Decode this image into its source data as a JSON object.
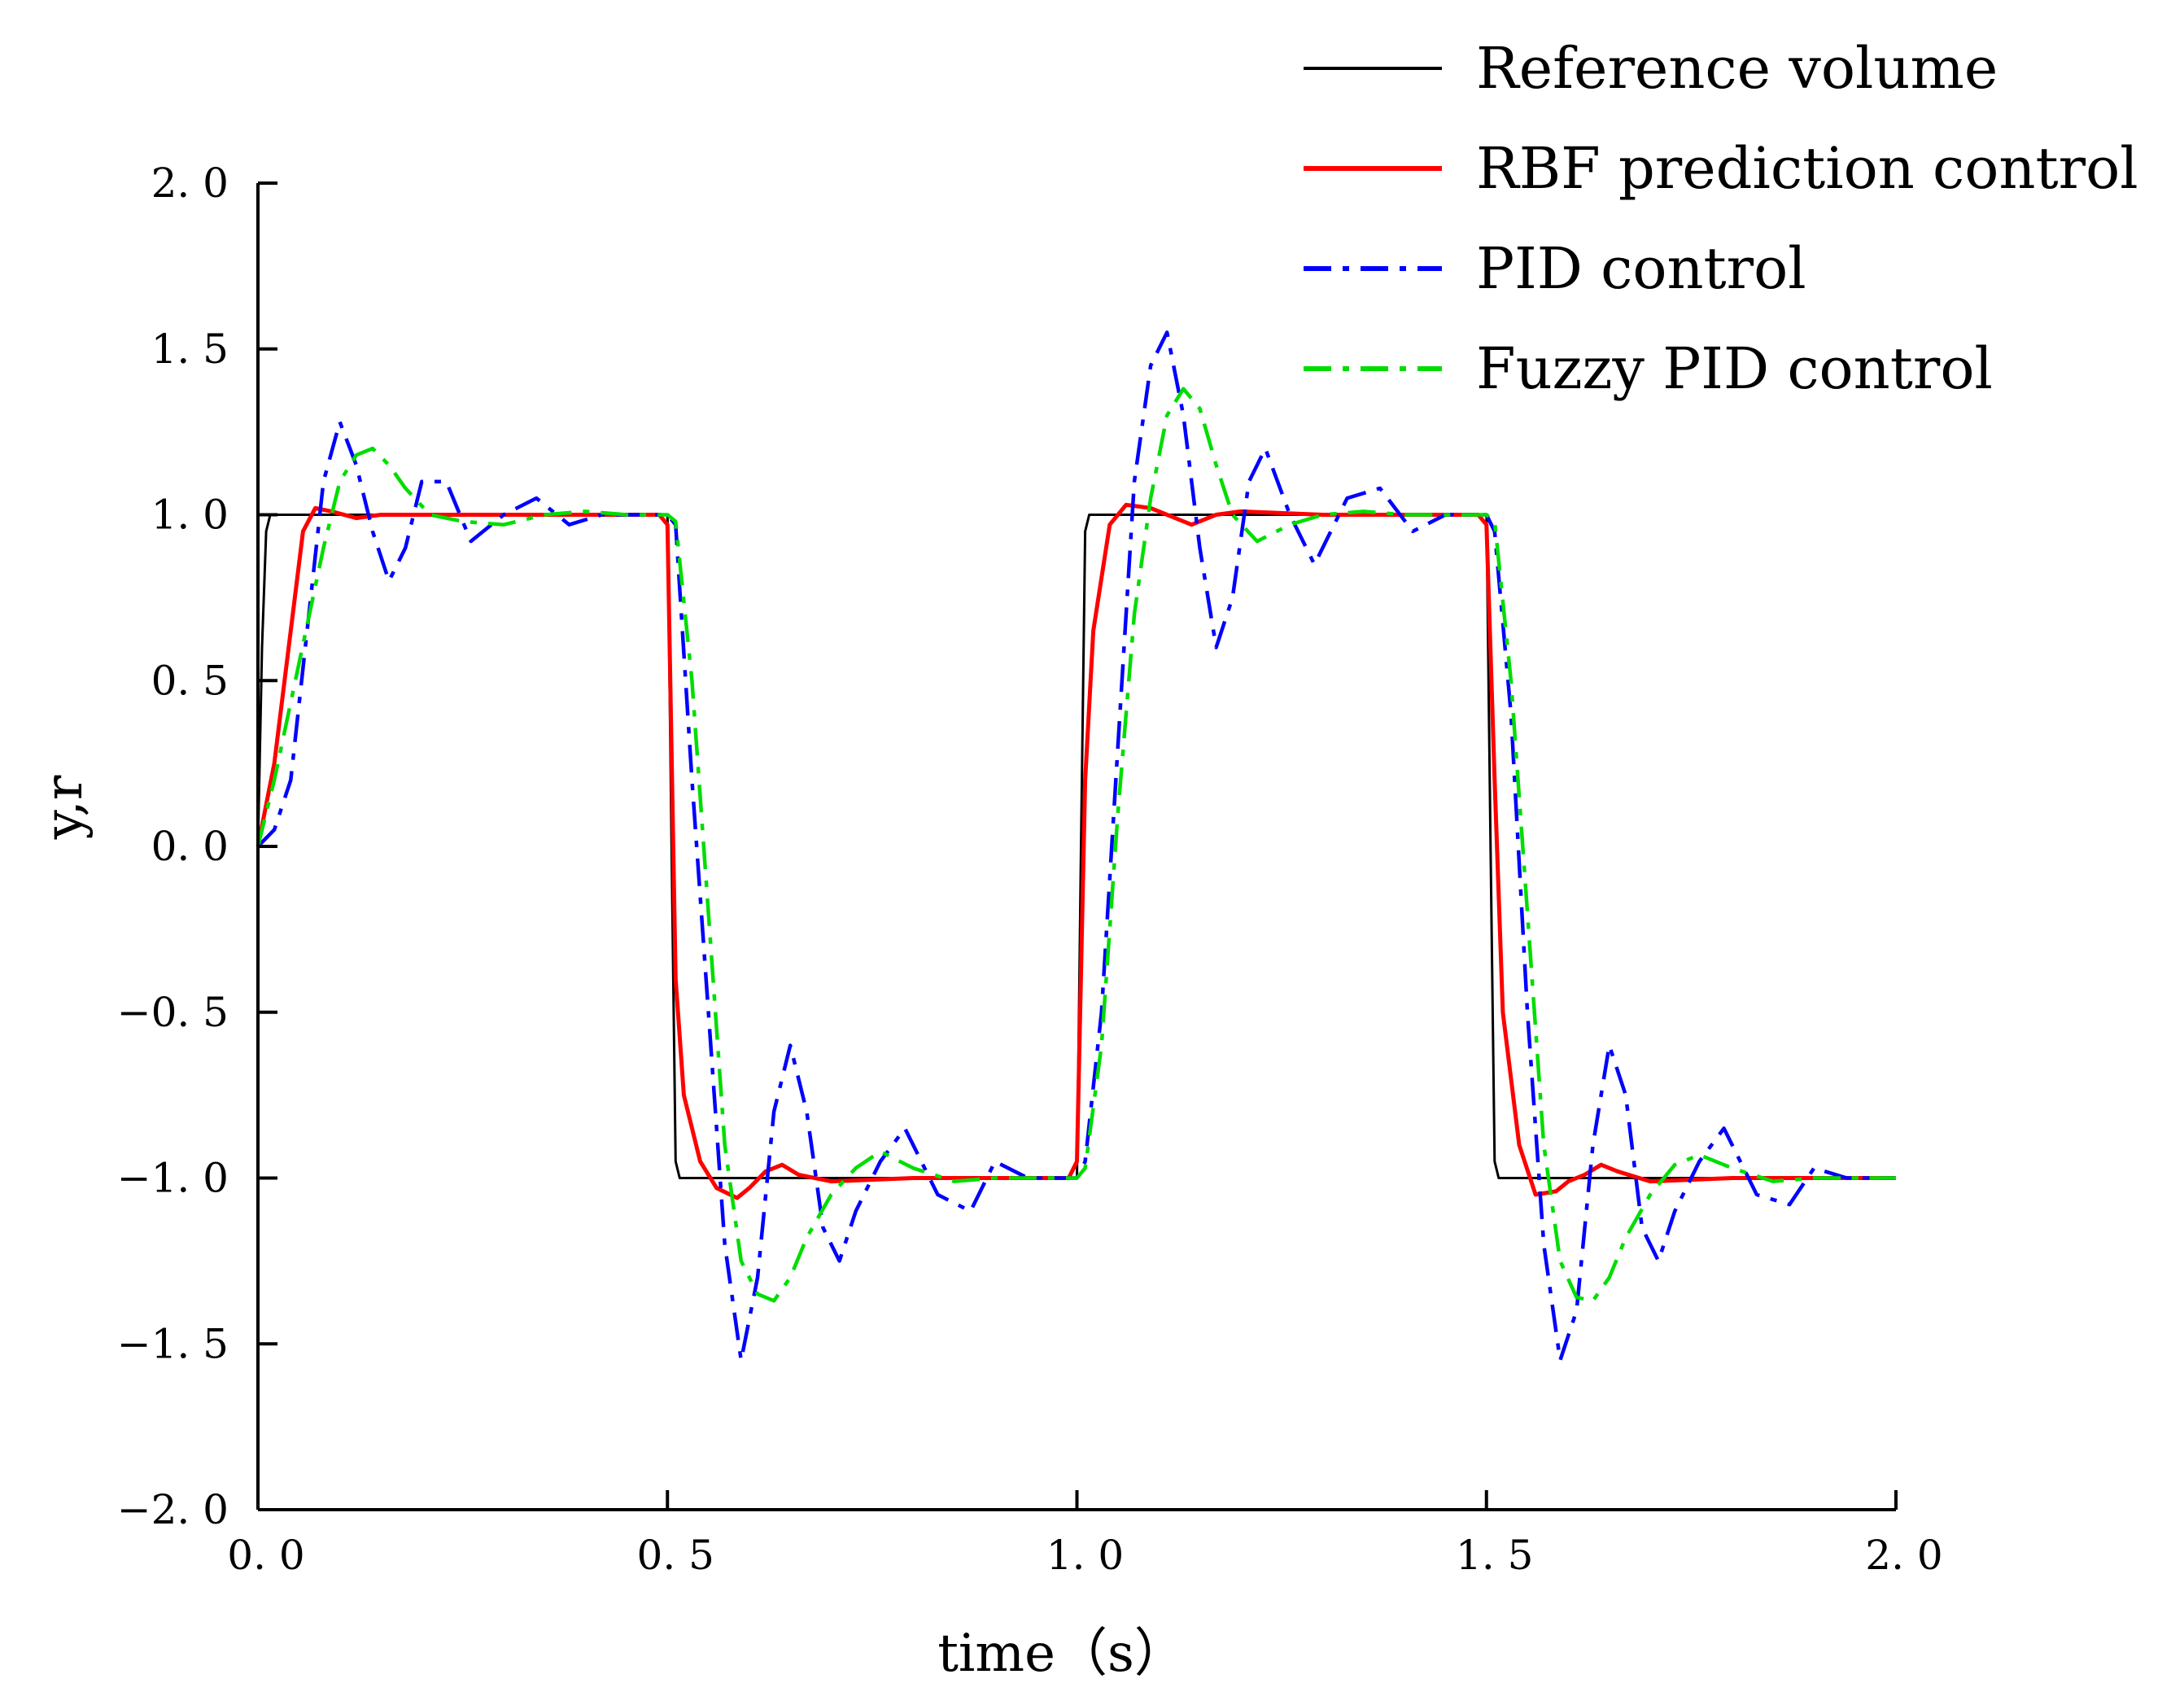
{
  "chart_data": {
    "type": "line",
    "title": "",
    "xlabel": "time（s）",
    "ylabel": "y,r",
    "xlim": [
      0.0,
      2.0
    ],
    "ylim": [
      -2.0,
      2.0
    ],
    "grid": false,
    "legend_position": "top-right",
    "x_ticks": [
      0.0,
      0.5,
      1.0,
      1.5,
      2.0
    ],
    "x_tick_labels": [
      "0. 0",
      "0. 5",
      "1. 0",
      "1. 5",
      "2. 0"
    ],
    "y_ticks": [
      2.0,
      1.5,
      1.0,
      0.5,
      0.0,
      -0.5,
      -1.0,
      -1.5,
      -2.0
    ],
    "y_tick_labels": [
      "2. 0",
      "1. 5",
      "1. 0",
      "0. 5",
      "0. 0",
      "−0. 5",
      "−1. 0",
      "−1. 5",
      "−2. 0"
    ],
    "series": [
      {
        "name": "Reference volume",
        "color": "#000000",
        "dash": "solid",
        "x": [
          0,
          0.005,
          0.01,
          0.015,
          0.5,
          0.505,
          0.51,
          0.515,
          1.0,
          1.005,
          1.01,
          1.015,
          1.5,
          1.505,
          1.51,
          1.515,
          2.0
        ],
        "y": [
          0,
          0.6,
          0.95,
          1.0,
          1.0,
          0.0,
          -0.95,
          -1.0,
          -1.0,
          0.0,
          0.95,
          1.0,
          1.0,
          0.0,
          -0.95,
          -1.0,
          -1.0
        ]
      },
      {
        "name": "RBF prediction control",
        "color": "#ff0000",
        "dash": "solid",
        "x": [
          0,
          0.02,
          0.04,
          0.055,
          0.07,
          0.09,
          0.12,
          0.15,
          0.2,
          0.3,
          0.4,
          0.49,
          0.5,
          0.51,
          0.52,
          0.54,
          0.56,
          0.585,
          0.6,
          0.62,
          0.64,
          0.66,
          0.7,
          0.8,
          0.9,
          0.99,
          1.0,
          1.01,
          1.02,
          1.04,
          1.06,
          1.09,
          1.12,
          1.14,
          1.17,
          1.2,
          1.3,
          1.4,
          1.49,
          1.5,
          1.51,
          1.52,
          1.54,
          1.56,
          1.585,
          1.6,
          1.62,
          1.64,
          1.66,
          1.7,
          1.8,
          1.9,
          2.0
        ],
        "y": [
          0,
          0.25,
          0.65,
          0.95,
          1.02,
          1.01,
          0.99,
          1.0,
          1.0,
          1.0,
          1.0,
          1.0,
          0.97,
          -0.4,
          -0.75,
          -0.95,
          -1.03,
          -1.06,
          -1.03,
          -0.98,
          -0.96,
          -0.99,
          -1.01,
          -1.0,
          -1.0,
          -1.0,
          -0.95,
          0.2,
          0.65,
          0.97,
          1.03,
          1.02,
          0.99,
          0.97,
          1.0,
          1.01,
          1.0,
          1.0,
          1.0,
          0.97,
          0.2,
          -0.5,
          -0.9,
          -1.05,
          -1.04,
          -1.01,
          -0.99,
          -0.96,
          -0.98,
          -1.01,
          -1.0,
          -1.0,
          -1.0
        ]
      },
      {
        "name": "PID control",
        "color": "#0000ff",
        "dash": "dashdot",
        "x": [
          0,
          0.02,
          0.04,
          0.06,
          0.08,
          0.1,
          0.12,
          0.14,
          0.16,
          0.18,
          0.2,
          0.23,
          0.26,
          0.3,
          0.34,
          0.38,
          0.42,
          0.46,
          0.5,
          0.51,
          0.53,
          0.55,
          0.57,
          0.59,
          0.61,
          0.63,
          0.65,
          0.67,
          0.69,
          0.71,
          0.73,
          0.76,
          0.79,
          0.83,
          0.87,
          0.9,
          0.94,
          0.98,
          1.0,
          1.01,
          1.03,
          1.05,
          1.07,
          1.09,
          1.11,
          1.13,
          1.15,
          1.17,
          1.19,
          1.21,
          1.23,
          1.26,
          1.29,
          1.33,
          1.37,
          1.41,
          1.45,
          1.5,
          1.51,
          1.53,
          1.55,
          1.57,
          1.59,
          1.61,
          1.63,
          1.65,
          1.67,
          1.69,
          1.71,
          1.73,
          1.76,
          1.79,
          1.83,
          1.87,
          1.9,
          1.94,
          2.0
        ],
        "y": [
          0,
          0.05,
          0.2,
          0.65,
          1.1,
          1.28,
          1.15,
          0.95,
          0.8,
          0.9,
          1.1,
          1.1,
          0.92,
          1.0,
          1.05,
          0.97,
          1.0,
          1.0,
          1.0,
          0.97,
          0.2,
          -0.5,
          -1.2,
          -1.55,
          -1.3,
          -0.8,
          -0.6,
          -0.8,
          -1.15,
          -1.25,
          -1.1,
          -0.95,
          -0.85,
          -1.05,
          -1.1,
          -0.95,
          -1.0,
          -1.0,
          -1.0,
          -0.95,
          -0.5,
          0.3,
          1.1,
          1.45,
          1.55,
          1.3,
          0.9,
          0.6,
          0.75,
          1.1,
          1.2,
          1.0,
          0.85,
          1.05,
          1.08,
          0.95,
          1.0,
          1.0,
          0.95,
          0.4,
          -0.5,
          -1.2,
          -1.55,
          -1.4,
          -0.9,
          -0.6,
          -0.75,
          -1.15,
          -1.25,
          -1.1,
          -0.95,
          -0.85,
          -1.05,
          -1.08,
          -0.97,
          -1.0,
          -1.0
        ]
      },
      {
        "name": "Fuzzy PID control",
        "color": "#00dd00",
        "dash": "dashdot",
        "x": [
          0,
          0.02,
          0.05,
          0.08,
          0.1,
          0.12,
          0.14,
          0.16,
          0.18,
          0.21,
          0.25,
          0.3,
          0.35,
          0.4,
          0.45,
          0.5,
          0.51,
          0.53,
          0.55,
          0.57,
          0.59,
          0.61,
          0.63,
          0.65,
          0.67,
          0.7,
          0.73,
          0.76,
          0.8,
          0.85,
          0.9,
          0.95,
          1.0,
          1.01,
          1.03,
          1.05,
          1.07,
          1.09,
          1.11,
          1.13,
          1.15,
          1.17,
          1.19,
          1.22,
          1.26,
          1.3,
          1.35,
          1.4,
          1.45,
          1.5,
          1.51,
          1.53,
          1.55,
          1.57,
          1.59,
          1.61,
          1.63,
          1.65,
          1.67,
          1.7,
          1.73,
          1.76,
          1.8,
          1.85,
          1.9,
          2.0
        ],
        "y": [
          0,
          0.2,
          0.55,
          0.9,
          1.1,
          1.18,
          1.2,
          1.15,
          1.08,
          1.0,
          0.98,
          0.97,
          1.0,
          1.01,
          1.0,
          1.0,
          0.98,
          0.5,
          -0.2,
          -0.9,
          -1.25,
          -1.35,
          -1.37,
          -1.3,
          -1.18,
          -1.05,
          -0.97,
          -0.92,
          -0.97,
          -1.01,
          -1.0,
          -1.0,
          -1.0,
          -0.97,
          -0.6,
          0.1,
          0.7,
          1.05,
          1.3,
          1.38,
          1.32,
          1.15,
          1.0,
          0.92,
          0.97,
          1.0,
          1.01,
          1.0,
          1.0,
          1.0,
          0.98,
          0.5,
          -0.2,
          -0.9,
          -1.25,
          -1.36,
          -1.37,
          -1.3,
          -1.18,
          -1.05,
          -0.96,
          -0.93,
          -0.97,
          -1.01,
          -1.0,
          -1.0
        ]
      }
    ]
  }
}
